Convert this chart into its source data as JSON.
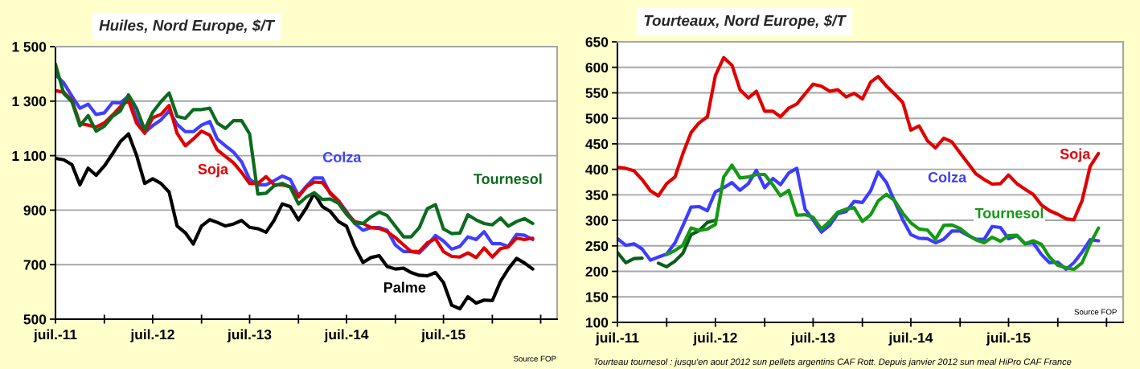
{
  "chart_data": [
    {
      "type": "line",
      "title": "Huiles, Nord Europe, $/T",
      "x": [
        "2011-07",
        "2011-08",
        "2011-09",
        "2011-10",
        "2011-11",
        "2011-12",
        "2012-01",
        "2012-02",
        "2012-03",
        "2012-04",
        "2012-05",
        "2012-06",
        "2012-07",
        "2012-08",
        "2012-09",
        "2012-10",
        "2012-11",
        "2012-12",
        "2013-01",
        "2013-02",
        "2013-03",
        "2013-04",
        "2013-05",
        "2013-06",
        "2013-07",
        "2013-08",
        "2013-09",
        "2013-10",
        "2013-11",
        "2013-12",
        "2014-01",
        "2014-02",
        "2014-03",
        "2014-04",
        "2014-05",
        "2014-06",
        "2014-07",
        "2014-08",
        "2014-09",
        "2014-10",
        "2014-11",
        "2014-12",
        "2015-01",
        "2015-02",
        "2015-03",
        "2015-04",
        "2015-05",
        "2015-06",
        "2015-07",
        "2015-08",
        "2015-09",
        "2015-10",
        "2015-11",
        "2015-12",
        "2016-01",
        "2016-02",
        "2016-03",
        "2016-04",
        "2016-05",
        "2016-06"
      ],
      "xlim": [
        "2011-07",
        "2016-09"
      ],
      "xticks": [
        {
          "value": "2011-07",
          "label": "juil.-11"
        },
        {
          "value": "2012-01",
          "label": null
        },
        {
          "value": "2012-07",
          "label": "juil.-12"
        },
        {
          "value": "2013-01",
          "label": null
        },
        {
          "value": "2013-07",
          "label": "juil.-13"
        },
        {
          "value": "2014-01",
          "label": null
        },
        {
          "value": "2014-07",
          "label": "juil.-14"
        },
        {
          "value": "2015-01",
          "label": null
        },
        {
          "value": "2015-07",
          "label": "juil.-15"
        },
        {
          "value": "2016-01",
          "label": null
        },
        {
          "value": "2016-07",
          "label": null
        }
      ],
      "ylim": [
        500,
        1500
      ],
      "yticks": [
        {
          "value": 500,
          "label": "500"
        },
        {
          "value": 700,
          "label": "700"
        },
        {
          "value": 900,
          "label": "900"
        },
        {
          "value": 1100,
          "label": "1 100"
        },
        {
          "value": 1300,
          "label": "1 300"
        },
        {
          "value": 1500,
          "label": "1 500"
        }
      ],
      "grid": "y",
      "series": [
        {
          "name": "Palme",
          "color": "#000000",
          "values": [
            1090,
            1085,
            1067,
            993,
            1054,
            1028,
            1062,
            1107,
            1151,
            1180,
            1102,
            998,
            1015,
            998,
            966,
            842,
            817,
            776,
            842,
            865,
            855,
            842,
            849,
            862,
            837,
            832,
            819,
            862,
            923,
            913,
            864,
            910,
            962,
            913,
            895,
            858,
            841,
            765,
            708,
            726,
            733,
            693,
            684,
            687,
            671,
            661,
            659,
            671,
            634,
            551,
            538,
            582,
            559,
            570,
            568,
            639,
            684,
            723,
            706,
            684
          ]
        },
        {
          "name": "Colza",
          "color": "#3f3fff",
          "values": [
            1397,
            1367,
            1318,
            1274,
            1289,
            1251,
            1257,
            1295,
            1293,
            1318,
            1239,
            1185,
            1210,
            1231,
            1264,
            1215,
            1188,
            1188,
            1212,
            1225,
            1161,
            1136,
            1113,
            1077,
            1013,
            993,
            993,
            1008,
            1025,
            1013,
            954,
            989,
            1018,
            1018,
            959,
            934,
            895,
            851,
            826,
            836,
            836,
            826,
            772,
            748,
            748,
            743,
            772,
            807,
            787,
            757,
            767,
            802,
            792,
            821,
            777,
            777,
            767,
            811,
            808,
            792
          ]
        },
        {
          "name": "Soja",
          "color": "#e00000",
          "values": [
            1338,
            1333,
            1303,
            1218,
            1212,
            1205,
            1220,
            1249,
            1279,
            1303,
            1220,
            1182,
            1239,
            1251,
            1284,
            1182,
            1136,
            1161,
            1190,
            1175,
            1121,
            1097,
            1074,
            1038,
            998,
            998,
            1023,
            993,
            993,
            986,
            949,
            986,
            1003,
            1001,
            964,
            934,
            890,
            858,
            851,
            836,
            833,
            821,
            799,
            772,
            748,
            748,
            780,
            795,
            748,
            730,
            728,
            743,
            726,
            761,
            728,
            759,
            765,
            797,
            792,
            797
          ]
        },
        {
          "name": "Tournesol",
          "color": "#0b6b1e",
          "values": [
            1436,
            1328,
            1298,
            1210,
            1247,
            1190,
            1208,
            1244,
            1264,
            1323,
            1274,
            1195,
            1259,
            1298,
            1330,
            1244,
            1237,
            1269,
            1269,
            1274,
            1220,
            1200,
            1228,
            1228,
            1180,
            959,
            962,
            989,
            998,
            984,
            923,
            949,
            964,
            939,
            941,
            925,
            885,
            853,
            851,
            875,
            893,
            880,
            841,
            802,
            802,
            836,
            905,
            920,
            831,
            814,
            816,
            883,
            864,
            851,
            846,
            871,
            841,
            858,
            869,
            851
          ]
        }
      ],
      "annotations": [
        "Source FOP"
      ]
    },
    {
      "type": "line",
      "title": "Tourteaux, Nord Europe, $/T",
      "x": [
        "2011-07",
        "2011-08",
        "2011-09",
        "2011-10",
        "2011-11",
        "2011-12",
        "2012-01",
        "2012-02",
        "2012-03",
        "2012-04",
        "2012-05",
        "2012-06",
        "2012-07",
        "2012-08",
        "2012-09",
        "2012-10",
        "2012-11",
        "2012-12",
        "2013-01",
        "2013-02",
        "2013-03",
        "2013-04",
        "2013-05",
        "2013-06",
        "2013-07",
        "2013-08",
        "2013-09",
        "2013-10",
        "2013-11",
        "2013-12",
        "2014-01",
        "2014-02",
        "2014-03",
        "2014-04",
        "2014-05",
        "2014-06",
        "2014-07",
        "2014-08",
        "2014-09",
        "2014-10",
        "2014-11",
        "2014-12",
        "2015-01",
        "2015-02",
        "2015-03",
        "2015-04",
        "2015-05",
        "2015-06",
        "2015-07",
        "2015-08",
        "2015-09",
        "2015-10",
        "2015-11",
        "2015-12",
        "2016-01",
        "2016-02",
        "2016-03",
        "2016-04",
        "2016-05",
        "2016-06"
      ],
      "xlim": [
        "2011-07",
        "2016-09"
      ],
      "xticks": [
        {
          "value": "2011-07",
          "label": "juil.-11"
        },
        {
          "value": "2012-01",
          "label": null
        },
        {
          "value": "2012-07",
          "label": "juil.-12"
        },
        {
          "value": "2013-01",
          "label": null
        },
        {
          "value": "2013-07",
          "label": "juil.-13"
        },
        {
          "value": "2014-01",
          "label": null
        },
        {
          "value": "2014-07",
          "label": "juil.-14"
        },
        {
          "value": "2015-01",
          "label": null
        },
        {
          "value": "2015-07",
          "label": "juil.-15"
        },
        {
          "value": "2016-01",
          "label": null
        },
        {
          "value": "2016-07",
          "label": null
        }
      ],
      "ylim": [
        100,
        650
      ],
      "yticks": [
        100,
        150,
        200,
        250,
        300,
        350,
        400,
        450,
        500,
        550,
        600,
        650
      ],
      "grid": "y",
      "series": [
        {
          "name": "Soja",
          "color": "#e00000",
          "values": [
            404,
            402,
            397,
            380,
            358,
            348,
            372,
            385,
            430,
            472,
            491,
            503,
            584,
            619,
            604,
            556,
            540,
            553,
            514,
            514,
            503,
            520,
            528,
            548,
            567,
            563,
            553,
            556,
            542,
            549,
            538,
            571,
            582,
            563,
            548,
            531,
            477,
            485,
            456,
            442,
            461,
            454,
            432,
            411,
            391,
            380,
            371,
            372,
            389,
            372,
            361,
            351,
            330,
            319,
            312,
            303,
            301,
            339,
            406,
            431
          ]
        },
        {
          "name": "Colza",
          "color": "#3c3cff",
          "values": [
            264,
            251,
            254,
            244,
            222,
            228,
            234,
            256,
            289,
            326,
            327,
            319,
            356,
            364,
            374,
            359,
            372,
            398,
            364,
            382,
            370,
            393,
            402,
            322,
            301,
            277,
            290,
            313,
            317,
            337,
            335,
            358,
            395,
            374,
            338,
            301,
            272,
            265,
            264,
            256,
            263,
            279,
            279,
            270,
            263,
            263,
            288,
            286,
            264,
            270,
            254,
            256,
            233,
            217,
            218,
            204,
            217,
            238,
            262,
            260
          ]
        },
        {
          "color": "#0b5e1b",
          "x": [
            "2011-07",
            "2011-08",
            "2011-09",
            "2011-10",
            "2011-11",
            "2011-12",
            "2012-01",
            "2012-02",
            "2012-03",
            "2012-04",
            "2012-05",
            "2012-06",
            "2012-07"
          ],
          "values": [
            237,
            217,
            225,
            226,
            null,
            216,
            209,
            220,
            235,
            272,
            280,
            296,
            300
          ]
        },
        {
          "name": "Tournesol",
          "color": "#149914",
          "x": [
            "2012-01",
            "2012-02",
            "2012-03",
            "2012-04",
            "2012-05",
            "2012-06",
            "2012-07",
            "2012-08",
            "2012-09",
            "2012-10",
            "2012-11",
            "2012-12",
            "2013-01",
            "2013-02",
            "2013-03",
            "2013-04",
            "2013-05",
            "2013-06",
            "2013-07",
            "2013-08",
            "2013-09",
            "2013-10",
            "2013-11",
            "2013-12",
            "2014-01",
            "2014-02",
            "2014-03",
            "2014-04",
            "2014-05",
            "2014-06",
            "2014-07",
            "2014-08",
            "2014-09",
            "2014-10",
            "2014-11",
            "2014-12",
            "2015-01",
            "2015-02",
            "2015-03",
            "2015-04",
            "2015-05",
            "2015-06",
            "2015-07",
            "2015-08",
            "2015-09",
            "2015-10",
            "2015-11",
            "2015-12",
            "2016-01",
            "2016-02",
            "2016-03",
            "2016-04",
            "2016-05",
            "2016-06"
          ],
          "values": [
            233,
            241,
            251,
            285,
            280,
            283,
            292,
            385,
            408,
            383,
            385,
            390,
            390,
            369,
            348,
            359,
            310,
            311,
            306,
            283,
            298,
            316,
            322,
            325,
            298,
            311,
            338,
            351,
            339,
            314,
            295,
            283,
            281,
            263,
            290,
            291,
            284,
            271,
            262,
            256,
            267,
            259,
            270,
            271,
            254,
            260,
            253,
            228,
            212,
            207,
            204,
            217,
            254,
            285
          ]
        }
      ],
      "annotations": [
        "Source FOP",
        "Tourteau tournesol : jusqu'en aout 2012 sun pellets argentins CAF Rott. Depuis janvier 2012 sun meal HiPro CAF France"
      ]
    }
  ]
}
